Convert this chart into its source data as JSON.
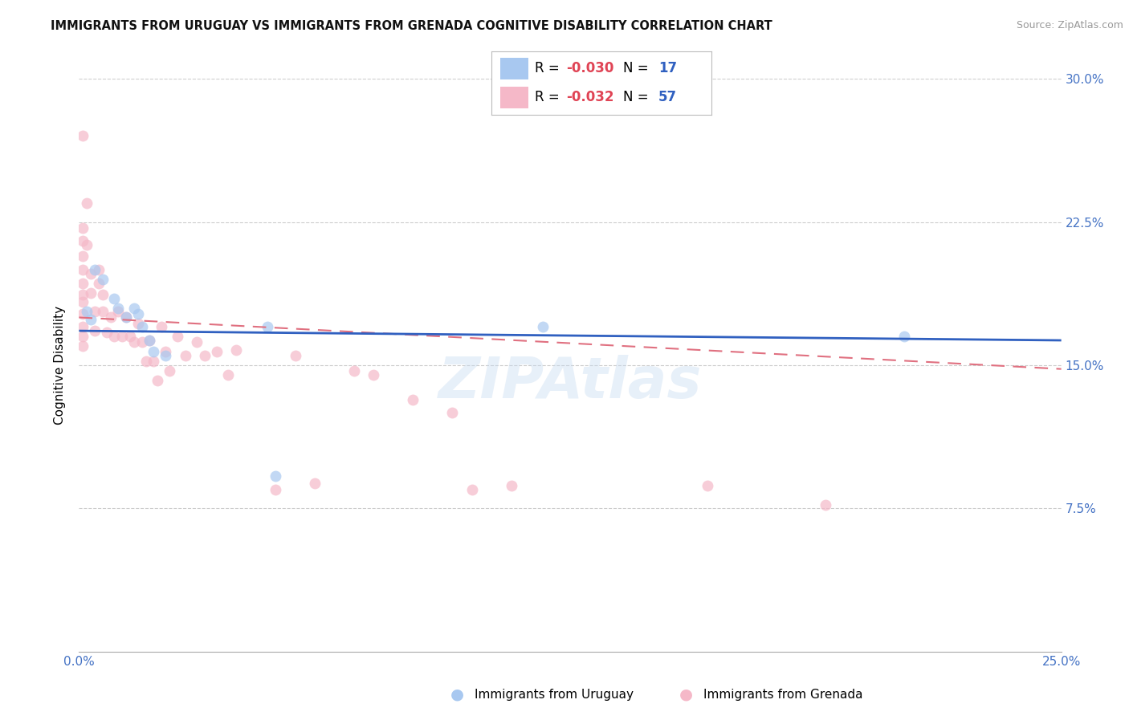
{
  "title": "IMMIGRANTS FROM URUGUAY VS IMMIGRANTS FROM GRENADA COGNITIVE DISABILITY CORRELATION CHART",
  "source": "Source: ZipAtlas.com",
  "ylabel": "Cognitive Disability",
  "xlim": [
    0.0,
    0.25
  ],
  "ylim": [
    0.0,
    0.3
  ],
  "xticks": [
    0.0,
    0.05,
    0.1,
    0.15,
    0.2,
    0.25
  ],
  "yticks": [
    0.0,
    0.075,
    0.15,
    0.225,
    0.3
  ],
  "R_uruguay": -0.03,
  "N_uruguay": 17,
  "R_grenada": -0.032,
  "N_grenada": 57,
  "color_uruguay": "#a8c8f0",
  "color_grenada": "#f5b8c8",
  "line_color_uruguay": "#3060c0",
  "line_color_grenada": "#e07080",
  "uruguay_line_y0": 0.168,
  "uruguay_line_y1": 0.163,
  "grenada_line_y0": 0.175,
  "grenada_line_y1": 0.148,
  "uruguay_x": [
    0.002,
    0.003,
    0.004,
    0.006,
    0.009,
    0.01,
    0.012,
    0.014,
    0.015,
    0.016,
    0.018,
    0.019,
    0.022,
    0.048,
    0.05,
    0.118,
    0.21
  ],
  "uruguay_y": [
    0.178,
    0.174,
    0.2,
    0.195,
    0.185,
    0.18,
    0.175,
    0.18,
    0.177,
    0.17,
    0.163,
    0.157,
    0.155,
    0.17,
    0.092,
    0.17,
    0.165
  ],
  "grenada_x": [
    0.001,
    0.001,
    0.001,
    0.001,
    0.001,
    0.001,
    0.001,
    0.001,
    0.001,
    0.001,
    0.001,
    0.001,
    0.002,
    0.002,
    0.003,
    0.003,
    0.004,
    0.004,
    0.005,
    0.005,
    0.006,
    0.006,
    0.007,
    0.008,
    0.009,
    0.01,
    0.011,
    0.012,
    0.013,
    0.014,
    0.015,
    0.016,
    0.017,
    0.018,
    0.019,
    0.02,
    0.021,
    0.022,
    0.023,
    0.025,
    0.027,
    0.03,
    0.032,
    0.035,
    0.038,
    0.04,
    0.05,
    0.055,
    0.06,
    0.07,
    0.075,
    0.085,
    0.095,
    0.1,
    0.11,
    0.16,
    0.19
  ],
  "grenada_y": [
    0.27,
    0.222,
    0.215,
    0.207,
    0.2,
    0.193,
    0.187,
    0.183,
    0.177,
    0.17,
    0.165,
    0.16,
    0.235,
    0.213,
    0.198,
    0.188,
    0.178,
    0.168,
    0.2,
    0.193,
    0.187,
    0.178,
    0.167,
    0.175,
    0.165,
    0.178,
    0.165,
    0.175,
    0.165,
    0.162,
    0.172,
    0.162,
    0.152,
    0.163,
    0.152,
    0.142,
    0.17,
    0.157,
    0.147,
    0.165,
    0.155,
    0.162,
    0.155,
    0.157,
    0.145,
    0.158,
    0.085,
    0.155,
    0.088,
    0.147,
    0.145,
    0.132,
    0.125,
    0.085,
    0.087,
    0.087,
    0.077
  ],
  "watermark_text": "ZIPAtlas",
  "title_fontsize": 10.5,
  "tick_fontsize": 11,
  "legend_fontsize": 12
}
